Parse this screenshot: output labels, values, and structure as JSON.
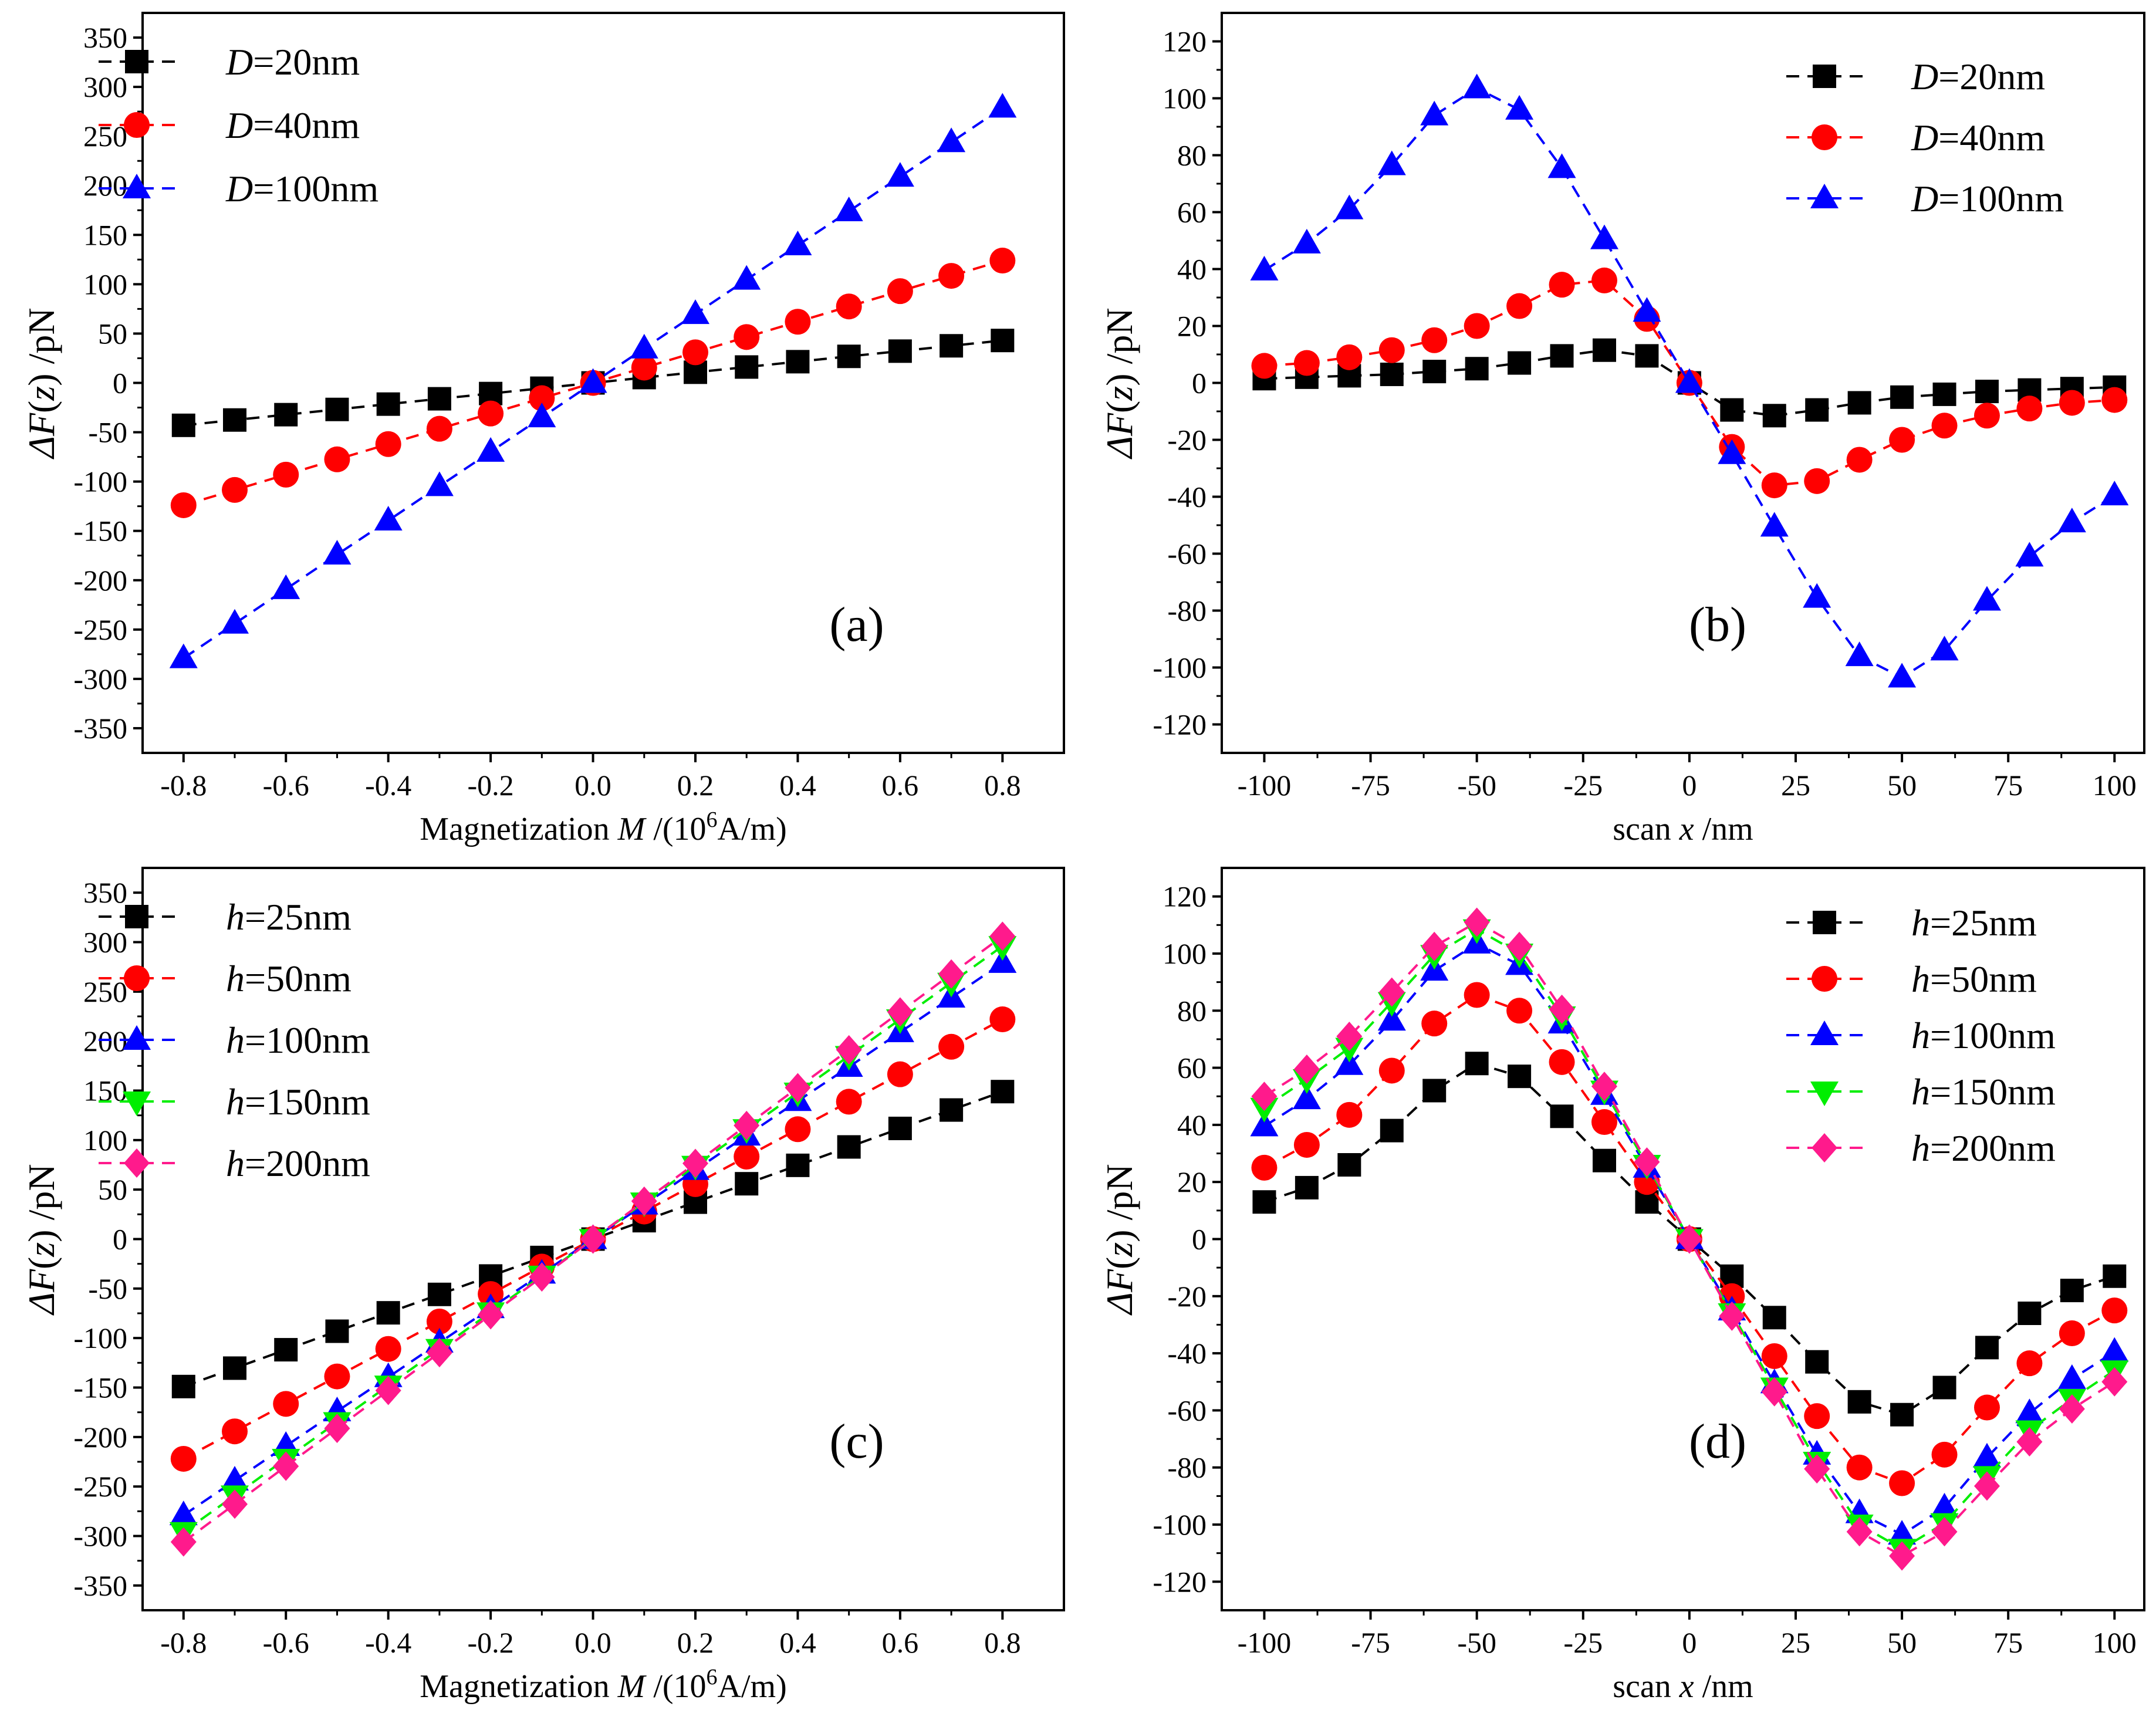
{
  "figure_title": "",
  "colors": {
    "D20": "#000000",
    "D40": "#ff0000",
    "D100": "#0000ff",
    "h25": "#000000",
    "h50": "#ff0000",
    "h100": "#0000ff",
    "h150": "#00ee00",
    "h200": "#ff1a8c"
  },
  "chart_data": [
    {
      "id": "a",
      "type": "line",
      "panel_label": "(a)",
      "ylabel": {
        "prefix": "ΔF(",
        "var": "z",
        "suffix": ") /pN"
      },
      "xlabel": {
        "prefix": "Magnetization ",
        "var": "M",
        "mid": " /(10",
        "sup": "6",
        "suffix": "A/m)"
      },
      "xlim": [
        -0.88,
        0.92
      ],
      "ylim": [
        -375,
        375
      ],
      "xticks": [
        -0.8,
        -0.6,
        -0.4,
        -0.2,
        0.0,
        0.2,
        0.4,
        0.6,
        0.8
      ],
      "xtick_labels": [
        "-0.8",
        "-0.6",
        "-0.4",
        "-0.2",
        "0.0",
        "0.2",
        "0.4",
        "0.6",
        "0.8"
      ],
      "yticks": [
        -350,
        -300,
        -250,
        -200,
        -150,
        -100,
        -50,
        0,
        50,
        100,
        150,
        200,
        250,
        300,
        350
      ],
      "ytick_labels": [
        "-350",
        "-300",
        "-250",
        "-200",
        "-150",
        "-100",
        "-50",
        "0",
        "50",
        "100",
        "150",
        "200",
        "250",
        "300",
        "350"
      ],
      "x": [
        -0.8,
        -0.7,
        -0.6,
        -0.5,
        -0.4,
        -0.3,
        -0.2,
        -0.1,
        0.0,
        0.1,
        0.2,
        0.3,
        0.4,
        0.5,
        0.6,
        0.7,
        0.8
      ],
      "legend_position": "top-left",
      "series": [
        {
          "label_var": "D",
          "label_rest": "=20nm",
          "color": "#000000",
          "marker": "square",
          "values": [
            -43,
            -37.6,
            -32.2,
            -26.9,
            -21.5,
            -16.1,
            -10.8,
            -5.4,
            0,
            5.4,
            10.8,
            16.1,
            21.5,
            26.9,
            32.2,
            37.6,
            43
          ]
        },
        {
          "label_var": "D",
          "label_rest": "=40nm",
          "color": "#ff0000",
          "marker": "circle",
          "values": [
            -124,
            -108.5,
            -93,
            -77.5,
            -62,
            -46.5,
            -31,
            -15.5,
            0,
            15.5,
            31,
            46.5,
            62,
            77.5,
            93,
            108.5,
            124
          ]
        },
        {
          "label_var": "D",
          "label_rest": "=100nm",
          "color": "#0000ff",
          "marker": "triangle-up",
          "values": [
            -279,
            -244,
            -209,
            -174,
            -139.5,
            -104.6,
            -69.8,
            -34.9,
            0,
            34.9,
            69.8,
            104.6,
            139.5,
            174,
            209,
            244,
            279
          ]
        }
      ]
    },
    {
      "id": "b",
      "type": "line",
      "panel_label": "(b)",
      "ylabel": {
        "prefix": "ΔF(",
        "var": "z",
        "suffix": ") /pN"
      },
      "xlabel": {
        "prefix": "scan ",
        "var": "x",
        "mid": " /nm",
        "sup": "",
        "suffix": ""
      },
      "xlim": [
        -110,
        107
      ],
      "ylim": [
        -130,
        130
      ],
      "xticks": [
        -100,
        -75,
        -50,
        -25,
        0,
        25,
        50,
        75,
        100
      ],
      "xtick_labels": [
        "-100",
        "-75",
        "-50",
        "-25",
        "0",
        "25",
        "50",
        "75",
        "100"
      ],
      "yticks": [
        -120,
        -100,
        -80,
        -60,
        -40,
        -20,
        0,
        20,
        40,
        60,
        80,
        100,
        120
      ],
      "ytick_labels": [
        "-120",
        "-100",
        "-80",
        "-60",
        "-40",
        "-20",
        "0",
        "20",
        "40",
        "60",
        "80",
        "100",
        "120"
      ],
      "x": [
        -100,
        -90,
        -80,
        -70,
        -60,
        -50,
        -40,
        -30,
        -20,
        -10,
        0,
        10,
        20,
        30,
        40,
        50,
        60,
        70,
        80,
        90,
        100
      ],
      "legend_position": "top-right",
      "series": [
        {
          "label_var": "D",
          "label_rest": "=20nm",
          "color": "#000000",
          "marker": "square",
          "values": [
            1.5,
            2,
            2.5,
            3,
            4,
            5,
            7,
            9.5,
            11.5,
            9.5,
            0,
            -9.5,
            -11.5,
            -9.5,
            -7,
            -5,
            -4,
            -3,
            -2.5,
            -2,
            -1.5
          ]
        },
        {
          "label_var": "D",
          "label_rest": "=40nm",
          "color": "#ff0000",
          "marker": "circle",
          "values": [
            6,
            7,
            9,
            11.5,
            15,
            20,
            27,
            34.5,
            36,
            22.5,
            0,
            -22.5,
            -36,
            -34.5,
            -27,
            -20,
            -15,
            -11.5,
            -9,
            -7,
            -6
          ]
        },
        {
          "label_var": "D",
          "label_rest": "=100nm",
          "color": "#0000ff",
          "marker": "triangle-up",
          "values": [
            39.5,
            49,
            61,
            76.5,
            94,
            103.5,
            96,
            75.5,
            50.5,
            25,
            0,
            -25,
            -50.5,
            -75.5,
            -96,
            -103.5,
            -94,
            -76.5,
            -61,
            -49,
            -39.5
          ]
        }
      ]
    },
    {
      "id": "c",
      "type": "line",
      "panel_label": "(c)",
      "ylabel": {
        "prefix": "ΔF(",
        "var": "z",
        "suffix": ") /pN"
      },
      "xlabel": {
        "prefix": "Magnetization ",
        "var": "M",
        "mid": " /(10",
        "sup": "6",
        "suffix": "A/m)"
      },
      "xlim": [
        -0.88,
        0.92
      ],
      "ylim": [
        -375,
        375
      ],
      "xticks": [
        -0.8,
        -0.6,
        -0.4,
        -0.2,
        0.0,
        0.2,
        0.4,
        0.6,
        0.8
      ],
      "xtick_labels": [
        "-0.8",
        "-0.6",
        "-0.4",
        "-0.2",
        "0.0",
        "0.2",
        "0.4",
        "0.6",
        "0.8"
      ],
      "yticks": [
        -350,
        -300,
        -250,
        -200,
        -150,
        -100,
        -50,
        0,
        50,
        100,
        150,
        200,
        250,
        300,
        350
      ],
      "ytick_labels": [
        "-350",
        "-300",
        "-250",
        "-200",
        "-150",
        "-100",
        "-50",
        "0",
        "50",
        "100",
        "150",
        "200",
        "250",
        "300",
        "350"
      ],
      "x": [
        -0.8,
        -0.7,
        -0.6,
        -0.5,
        -0.4,
        -0.3,
        -0.2,
        -0.1,
        0.0,
        0.1,
        0.2,
        0.3,
        0.4,
        0.5,
        0.6,
        0.7,
        0.8
      ],
      "legend_position": "top-left",
      "series": [
        {
          "label_var": "h",
          "label_rest": "=25nm",
          "color": "#000000",
          "marker": "square",
          "values": [
            -149,
            -130.4,
            -111.8,
            -93.1,
            -74.5,
            -55.9,
            -37.3,
            -18.6,
            0,
            18.6,
            37.3,
            55.9,
            74.5,
            93.1,
            111.8,
            130.4,
            149
          ]
        },
        {
          "label_var": "h",
          "label_rest": "=50nm",
          "color": "#ff0000",
          "marker": "circle",
          "values": [
            -222,
            -194.3,
            -166.5,
            -138.8,
            -111,
            -83.3,
            -55.5,
            -27.8,
            0,
            27.8,
            55.5,
            83.3,
            111,
            138.8,
            166.5,
            194.3,
            222
          ]
        },
        {
          "label_var": "h",
          "label_rest": "=100nm",
          "color": "#0000ff",
          "marker": "triangle-up",
          "values": [
            -279,
            -244,
            -209,
            -174,
            -139.5,
            -104.6,
            -69.8,
            -34.9,
            0,
            34.9,
            69.8,
            104.6,
            139.5,
            174,
            209,
            244,
            279
          ]
        },
        {
          "label_var": "h",
          "label_rest": "=150nm",
          "color": "#00ee00",
          "marker": "triangle-down",
          "values": [
            -296,
            -259,
            -222,
            -185,
            -148,
            -111,
            -74,
            -37,
            0,
            37,
            74,
            111,
            148,
            185,
            222,
            259,
            296
          ]
        },
        {
          "label_var": "h",
          "label_rest": "=200nm",
          "color": "#ff1a8c",
          "marker": "diamond",
          "values": [
            -306,
            -267.8,
            -229.5,
            -191.3,
            -153,
            -114.8,
            -76.5,
            -38.3,
            0,
            38.3,
            76.5,
            114.8,
            153,
            191.3,
            229.5,
            267.8,
            306
          ]
        }
      ]
    },
    {
      "id": "d",
      "type": "line",
      "panel_label": "(d)",
      "ylabel": {
        "prefix": "ΔF(",
        "var": "z",
        "suffix": ") /pN"
      },
      "xlabel": {
        "prefix": "scan ",
        "var": "x",
        "mid": " /nm",
        "sup": "",
        "suffix": ""
      },
      "xlim": [
        -110,
        107
      ],
      "ylim": [
        -130,
        130
      ],
      "xticks": [
        -100,
        -75,
        -50,
        -25,
        0,
        25,
        50,
        75,
        100
      ],
      "xtick_labels": [
        "-100",
        "-75",
        "-50",
        "-25",
        "0",
        "25",
        "50",
        "75",
        "100"
      ],
      "yticks": [
        -120,
        -100,
        -80,
        -60,
        -40,
        -20,
        0,
        20,
        40,
        60,
        80,
        100,
        120
      ],
      "ytick_labels": [
        "-120",
        "-100",
        "-80",
        "-60",
        "-40",
        "-20",
        "0",
        "20",
        "40",
        "60",
        "80",
        "100",
        "120"
      ],
      "x": [
        -100,
        -90,
        -80,
        -70,
        -60,
        -50,
        -40,
        -30,
        -20,
        -10,
        0,
        10,
        20,
        30,
        40,
        50,
        60,
        70,
        80,
        90,
        100
      ],
      "legend_position": "top-right",
      "series": [
        {
          "label_var": "h",
          "label_rest": "=25nm",
          "color": "#000000",
          "marker": "square",
          "values": [
            13,
            18,
            26,
            38,
            52,
            61.5,
            57,
            43,
            27.5,
            13,
            0,
            -13,
            -27.5,
            -43,
            -57,
            -61.5,
            -52,
            -38,
            -26,
            -18,
            -13
          ]
        },
        {
          "label_var": "h",
          "label_rest": "=50nm",
          "color": "#ff0000",
          "marker": "circle",
          "values": [
            25,
            33,
            43.5,
            59,
            75.5,
            85.5,
            80,
            62,
            41,
            20,
            0,
            -20,
            -41,
            -62,
            -80,
            -85.5,
            -75.5,
            -59,
            -43.5,
            -33,
            -25
          ]
        },
        {
          "label_var": "h",
          "label_rest": "=100nm",
          "color": "#0000ff",
          "marker": "triangle-up",
          "values": [
            39.5,
            49,
            61,
            76.5,
            94,
            103.5,
            96,
            75.5,
            50.5,
            25,
            0,
            -25,
            -50.5,
            -75.5,
            -96,
            -103.5,
            -94,
            -76.5,
            -61,
            -49,
            -39.5
          ]
        },
        {
          "label_var": "h",
          "label_rest": "=150nm",
          "color": "#00ee00",
          "marker": "triangle-down",
          "values": [
            46,
            56,
            67,
            83,
            99.5,
            108.5,
            100,
            78,
            52,
            26,
            0,
            -26,
            -52,
            -78,
            -100,
            -108.5,
            -99.5,
            -83,
            -67,
            -56,
            -46
          ]
        },
        {
          "label_var": "h",
          "label_rest": "=200nm",
          "color": "#ff1a8c",
          "marker": "diamond",
          "values": [
            50,
            59.5,
            71,
            86.5,
            102.5,
            111,
            102.5,
            80.5,
            53.5,
            27,
            0,
            -27,
            -53.5,
            -80.5,
            -102.5,
            -111,
            -102.5,
            -86.5,
            -71,
            -59.5,
            -50
          ]
        }
      ]
    }
  ]
}
